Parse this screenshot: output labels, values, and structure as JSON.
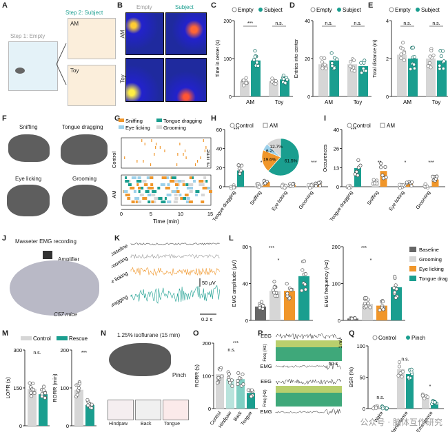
{
  "panels": {
    "A": {
      "step1": "Step 1: Empty",
      "step2": "Step 2: Subject",
      "am": "AM",
      "toy": "Toy"
    },
    "B": {
      "col_empty": "Empty",
      "col_subject": "Subject",
      "row_am": "AM",
      "row_toy": "Toy"
    },
    "C": {
      "ylabel": "Time in center (s)",
      "legend": [
        "Empty",
        "Subject"
      ],
      "xcats": [
        "AM",
        "Toy"
      ],
      "sig": [
        "***",
        "n.s."
      ]
    },
    "D": {
      "ylabel": "Entries into center",
      "legend": [
        "Empty",
        "Subject"
      ],
      "xcats": [
        "AM",
        "Toy"
      ],
      "sig": [
        "n.s.",
        "n.s."
      ]
    },
    "E": {
      "ylabel": "Total distance (m)",
      "legend": [
        "Empty",
        "Subject"
      ],
      "xcats": [
        "AM",
        "Toy"
      ],
      "sig": [
        "n.s.",
        "n.s."
      ]
    },
    "F": {
      "labels": [
        "Sniffing",
        "Tongue dragging",
        "Eye licking",
        "Grooming"
      ]
    },
    "G": {
      "legend": [
        "Sniffing",
        "Tongue dragging",
        "Eye licking",
        "Grooming"
      ],
      "rows": [
        "Control",
        "AM"
      ],
      "xlabel": "Time (min)",
      "xticks": [
        "0",
        "5",
        "10",
        "15"
      ]
    },
    "H": {
      "ylabel": "% Time",
      "legend": [
        "Control",
        "AM"
      ],
      "cats": [
        "Tongue dragging",
        "Sniffing",
        "Eye licking",
        "Grooming"
      ],
      "sig": [
        "***",
        "**",
        "*",
        "***"
      ],
      "pie": [
        "61.5%",
        "19.6%",
        "6.2%",
        "12.7%"
      ]
    },
    "I": {
      "ylabel": "Occurences",
      "legend": [
        "Control",
        "AM"
      ],
      "cats": [
        "Tongue dragging",
        "Sniffing",
        "Eye licking",
        "Grooming"
      ],
      "sig": [
        "***",
        "**",
        "*",
        "***"
      ]
    },
    "J": {
      "title": "Masseter EMG recording",
      "amp": "Amplifier",
      "mice": "C57 mice"
    },
    "K": {
      "traces": [
        "Baseline",
        "Grooming",
        "Eye licking",
        "Tongue dragging"
      ],
      "scale_v": "50 μV",
      "scale_t": "0.2 s"
    },
    "L": {
      "ylabel1": "EMG amplitude (μV)",
      "ylabel2": "EMG frequency (Hz)",
      "legend": [
        "Baseline",
        "Grooming",
        "Eye licking",
        "Tongue dragging"
      ]
    },
    "M": {
      "legend": [
        "Control",
        "Rescue"
      ],
      "ylabel1": "LOPR (s)",
      "ylabel2": "RORR (min)",
      "sig": [
        "n.s.",
        "***"
      ]
    },
    "N": {
      "title": "1.25% isoflurane (15 min)",
      "pinch": "Pinch",
      "sites": [
        "Hindpaw",
        "Back",
        "Tongue"
      ]
    },
    "O": {
      "ylabel": "RORR (s)",
      "cats": [
        "Control",
        "Hindpaw",
        "Back",
        "Tongue"
      ],
      "sig": [
        "***",
        "n.s."
      ]
    },
    "P": {
      "eeg": "EEG",
      "emg": "EMG",
      "freq": "Freq (Hz)",
      "scale_t": "60 s",
      "scale_v": "1 mV"
    },
    "Q": {
      "ylabel": "BSR (%)",
      "legend": [
        "Control",
        "Pinch"
      ],
      "cats": [
        "Wake",
        "Maintenance",
        "Emergence"
      ],
      "sig": [
        "n.s.",
        "n.s.",
        "*"
      ]
    }
  },
  "chart_data": [
    {
      "type": "bar",
      "panel": "C",
      "ylabel": "Time in center (s)",
      "ylim": [
        0,
        200
      ],
      "categories": [
        "AM",
        "Toy"
      ],
      "series": [
        {
          "name": "Empty",
          "values": [
            40,
            40
          ]
        },
        {
          "name": "Subject",
          "values": [
            95,
            45
          ]
        }
      ]
    },
    {
      "type": "bar",
      "panel": "D",
      "ylabel": "Entries into center",
      "ylim": [
        0,
        40
      ],
      "categories": [
        "AM",
        "Toy"
      ],
      "series": [
        {
          "name": "Empty",
          "values": [
            17,
            17
          ]
        },
        {
          "name": "Subject",
          "values": [
            19,
            16
          ]
        }
      ]
    },
    {
      "type": "bar",
      "panel": "E",
      "ylabel": "Total distance (m)",
      "ylim": [
        0,
        4
      ],
      "categories": [
        "AM",
        "Toy"
      ],
      "series": [
        {
          "name": "Empty",
          "values": [
            2.2,
            2.0
          ]
        },
        {
          "name": "Subject",
          "values": [
            2.0,
            1.9
          ]
        }
      ]
    },
    {
      "type": "bar",
      "panel": "H",
      "ylabel": "% Time",
      "ylim": [
        0,
        60
      ],
      "categories": [
        "Tongue dragging",
        "Sniffing",
        "Eye licking",
        "Grooming"
      ],
      "series": [
        {
          "name": "Control",
          "values": [
            0,
            1,
            0.5,
            0.5
          ]
        },
        {
          "name": "AM",
          "values": [
            17,
            5,
            2,
            3
          ]
        }
      ]
    },
    {
      "type": "bar",
      "panel": "I",
      "ylabel": "Occurences",
      "ylim": [
        0,
        40
      ],
      "categories": [
        "Tongue dragging",
        "Sniffing",
        "Eye licking",
        "Grooming"
      ],
      "series": [
        {
          "name": "Control",
          "values": [
            0,
            4,
            0.5,
            0.5
          ]
        },
        {
          "name": "AM",
          "values": [
            13,
            11,
            2,
            5
          ]
        }
      ]
    },
    {
      "type": "pie",
      "panel": "H-inset",
      "labels": [
        "Tongue dragging",
        "Sniffing",
        "Eye licking",
        "Grooming"
      ],
      "values": [
        61.5,
        19.6,
        6.2,
        12.7
      ]
    },
    {
      "type": "bar",
      "panel": "L1",
      "ylabel": "EMG amplitude (μV)",
      "ylim": [
        0,
        80
      ],
      "categories": [
        "Baseline",
        "Grooming",
        "Eye licking",
        "Tongue dragging"
      ],
      "values": [
        15,
        32,
        32,
        48
      ]
    },
    {
      "type": "bar",
      "panel": "L2",
      "ylabel": "EMG frequency (Hz)",
      "ylim": [
        0,
        200
      ],
      "categories": [
        "Baseline",
        "Grooming",
        "Eye licking",
        "Tongue dragging"
      ],
      "values": [
        5,
        45,
        40,
        90
      ]
    },
    {
      "type": "bar",
      "panel": "M1",
      "ylabel": "LOPR (s)",
      "ylim": [
        0,
        300
      ],
      "categories": [
        "Control",
        "Rescue"
      ],
      "values": [
        145,
        125
      ]
    },
    {
      "type": "bar",
      "panel": "M2",
      "ylabel": "RORR (min)",
      "ylim": [
        0,
        200
      ],
      "categories": [
        "Control",
        "Rescue"
      ],
      "values": [
        95,
        55
      ]
    },
    {
      "type": "bar",
      "panel": "O",
      "ylabel": "RORR (s)",
      "ylim": [
        0,
        200
      ],
      "categories": [
        "Control",
        "Hindpaw",
        "Back",
        "Tongue"
      ],
      "values": [
        105,
        90,
        90,
        48
      ]
    },
    {
      "type": "bar",
      "panel": "Q",
      "ylabel": "BSR (%)",
      "ylim": [
        0,
        100
      ],
      "categories": [
        "Wake",
        "Maintenance",
        "Emergence"
      ],
      "series": [
        {
          "name": "Control",
          "values": [
            2,
            63,
            20
          ]
        },
        {
          "name": "Pinch",
          "values": [
            2,
            55,
            10
          ]
        }
      ]
    }
  ],
  "watermark": "公众号 · 脑体互作研究",
  "colors": {
    "teal": "#1a9e8f",
    "orange": "#f0962a",
    "lightgray": "#d6d6d6",
    "darkgray": "#555555",
    "lightblue": "#9cd0ea",
    "heatblue": "#1f2a9e"
  }
}
